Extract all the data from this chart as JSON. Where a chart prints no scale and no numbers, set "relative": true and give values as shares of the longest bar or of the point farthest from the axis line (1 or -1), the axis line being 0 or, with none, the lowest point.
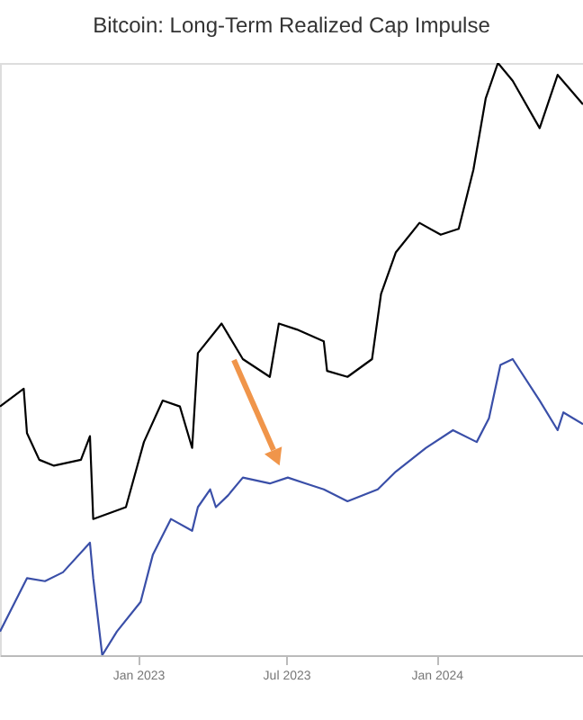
{
  "chart_data": {
    "type": "line",
    "title": "Bitcoin: Long-Term Realized Cap Impulse",
    "relative": true,
    "grid": false,
    "legend": false,
    "marker": "none",
    "line_style": "solid",
    "xlim": [
      "2022-07-16",
      "2024-06-28"
    ],
    "xticks": [
      {
        "value": "2023-01-01",
        "label": "Jan 2023"
      },
      {
        "value": "2023-07-01",
        "label": "Jul 2023"
      },
      {
        "value": "2024-01-01",
        "label": "Jan 2024"
      }
    ],
    "series": [
      {
        "color": "#000000",
        "x": [
          "2022-07-16",
          "2022-08-14",
          "2022-08-18",
          "2022-09-02",
          "2022-09-20",
          "2022-10-23",
          "2022-11-03",
          "2022-11-07",
          "2022-12-17",
          "2023-01-08",
          "2023-01-31",
          "2023-02-21",
          "2023-03-08",
          "2023-03-15",
          "2023-04-13",
          "2023-05-09",
          "2023-06-11",
          "2023-06-22",
          "2023-07-14",
          "2023-08-16",
          "2023-08-20",
          "2023-09-14",
          "2023-10-14",
          "2023-10-25",
          "2023-11-12",
          "2023-12-11",
          "2024-01-06",
          "2024-01-28",
          "2024-02-15",
          "2024-03-01",
          "2024-03-16",
          "2024-04-03",
          "2024-05-06",
          "2024-05-28",
          "2024-06-28"
        ],
        "values": [
          0.42,
          0.45,
          0.375,
          0.33,
          0.32,
          0.33,
          0.37,
          0.23,
          0.25,
          0.36,
          0.43,
          0.42,
          0.35,
          0.51,
          0.56,
          0.5,
          0.47,
          0.56,
          0.55,
          0.53,
          0.48,
          0.47,
          0.5,
          0.61,
          0.68,
          0.73,
          0.71,
          0.72,
          0.82,
          0.94,
          1.0,
          0.97,
          0.89,
          0.98,
          0.93
        ]
      },
      {
        "color": "#3a4fa8",
        "x": [
          "2022-07-16",
          "2022-08-07",
          "2022-08-18",
          "2022-09-09",
          "2022-10-01",
          "2022-11-03",
          "2022-11-07",
          "2022-11-18",
          "2022-12-06",
          "2023-01-04",
          "2023-01-19",
          "2023-02-10",
          "2023-03-08",
          "2023-03-15",
          "2023-03-30",
          "2023-04-06",
          "2023-04-21",
          "2023-05-09",
          "2023-06-11",
          "2023-07-03",
          "2023-07-25",
          "2023-08-16",
          "2023-09-14",
          "2023-10-21",
          "2023-11-12",
          "2023-12-19",
          "2024-01-21",
          "2024-02-19",
          "2024-03-05",
          "2024-03-19",
          "2024-04-03",
          "2024-05-06",
          "2024-05-28",
          "2024-06-04",
          "2024-06-28"
        ],
        "values": [
          0.04,
          0.1,
          0.13,
          0.125,
          0.14,
          0.19,
          0.13,
          0.0,
          0.04,
          0.09,
          0.17,
          0.23,
          0.21,
          0.25,
          0.28,
          0.25,
          0.27,
          0.3,
          0.29,
          0.3,
          0.29,
          0.28,
          0.26,
          0.28,
          0.31,
          0.35,
          0.38,
          0.36,
          0.4,
          0.49,
          0.5,
          0.43,
          0.38,
          0.41,
          0.39
        ]
      }
    ]
  }
}
